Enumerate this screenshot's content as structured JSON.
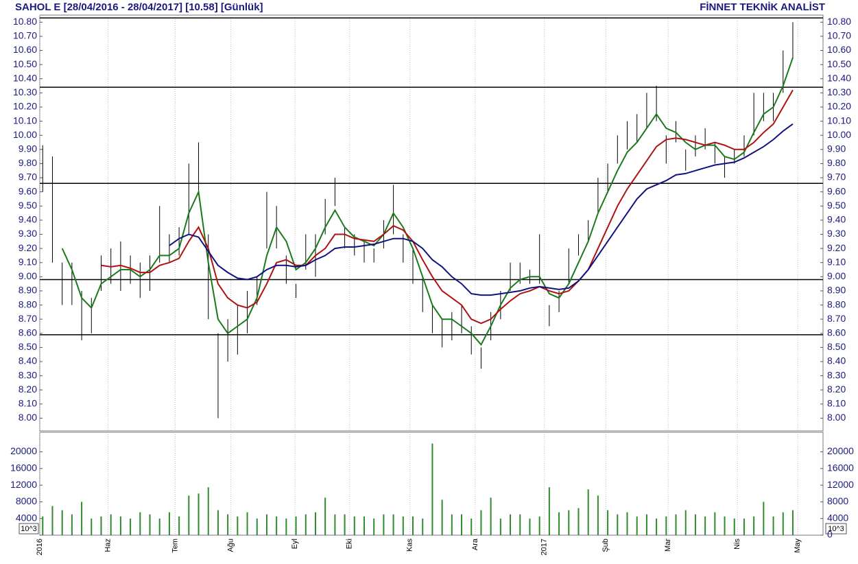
{
  "chart_data": {
    "type": "ohlc",
    "title": "SAHOL E  [28/04/2016 - 28/04/2017]  [10.58]  [Günlük]",
    "source": "FİNNET TEKNİK ANALİST",
    "xlim": [
      -0.3,
      80.1
    ],
    "xticks": [
      {
        "value": -0.3,
        "label": "2016"
      },
      {
        "value": 6.7,
        "label": "Haz"
      },
      {
        "value": 13.6,
        "label": "Tem"
      },
      {
        "value": 19.3,
        "label": "Ağu"
      },
      {
        "value": 25.9,
        "label": "Eyl"
      },
      {
        "value": 31.5,
        "label": "Eki"
      },
      {
        "value": 37.7,
        "label": "Kas"
      },
      {
        "value": 44.4,
        "label": "Ara"
      },
      {
        "value": 51.5,
        "label": "2017"
      },
      {
        "value": 57.8,
        "label": "Şub"
      },
      {
        "value": 64.2,
        "label": "Mar"
      },
      {
        "value": 71.3,
        "label": "Nis"
      },
      {
        "value": 77.5,
        "label": "May"
      }
    ],
    "ylim": [
      7.91,
      10.85
    ],
    "yticks": [
      {
        "value": 8.0,
        "label": "8.00"
      },
      {
        "value": 8.1,
        "label": "8.10"
      },
      {
        "value": 8.2,
        "label": "8.20"
      },
      {
        "value": 8.3,
        "label": "8.30"
      },
      {
        "value": 8.4,
        "label": "8.40"
      },
      {
        "value": 8.5,
        "label": "8.50"
      },
      {
        "value": 8.6,
        "label": "8.60"
      },
      {
        "value": 8.7,
        "label": "8.70"
      },
      {
        "value": 8.8,
        "label": "8.80"
      },
      {
        "value": 8.9,
        "label": "8.90"
      },
      {
        "value": 9.0,
        "label": "9.00"
      },
      {
        "value": 9.1,
        "label": "9.10"
      },
      {
        "value": 9.2,
        "label": "9.20"
      },
      {
        "value": 9.3,
        "label": "9.30"
      },
      {
        "value": 9.4,
        "label": "9.40"
      },
      {
        "value": 9.5,
        "label": "9.50"
      },
      {
        "value": 9.6,
        "label": "9.60"
      },
      {
        "value": 9.7,
        "label": "9.70"
      },
      {
        "value": 9.8,
        "label": "9.80"
      },
      {
        "value": 9.9,
        "label": "9.90"
      },
      {
        "value": 10.0,
        "label": "10.00"
      },
      {
        "value": 10.1,
        "label": "10.10"
      },
      {
        "value": 10.2,
        "label": "10.20"
      },
      {
        "value": 10.3,
        "label": "10.30"
      },
      {
        "value": 10.4,
        "label": "10.40"
      },
      {
        "value": 10.5,
        "label": "10.50"
      },
      {
        "value": 10.6,
        "label": "10.60"
      },
      {
        "value": 10.7,
        "label": "10.70"
      },
      {
        "value": 10.8,
        "label": "10.80"
      }
    ],
    "levels": [
      10.83,
      10.34,
      9.66,
      8.98,
      8.59
    ],
    "bars": {
      "color": "#000000",
      "high": [
        9.93,
        9.85,
        9.1,
        9.1,
        8.9,
        8.85,
        9.15,
        9.2,
        9.25,
        9.15,
        9.1,
        9.15,
        9.5,
        9.3,
        9.35,
        9.8,
        9.95,
        9.3,
        8.6,
        8.7,
        8.8,
        8.9,
        9.0,
        9.6,
        9.5,
        9.15,
        8.95,
        9.3,
        9.3,
        9.55,
        9.7,
        9.35,
        9.3,
        9.25,
        9.2,
        9.4,
        9.65,
        9.3,
        9.2,
        9.0,
        8.8,
        8.7,
        8.75,
        8.8,
        8.65,
        8.5,
        8.75,
        8.9,
        9.1,
        9.1,
        9.05,
        9.3,
        8.8,
        8.9,
        9.2,
        9.3,
        9.4,
        9.7,
        9.8,
        10.0,
        10.1,
        10.15,
        10.3,
        10.35,
        10.0,
        10.1,
        9.9,
        10.0,
        10.05,
        9.95,
        9.85,
        9.9,
        10.0,
        10.3,
        10.3,
        10.3,
        10.6,
        10.8
      ],
      "low": [
        9.6,
        9.1,
        8.8,
        8.8,
        8.55,
        8.6,
        8.9,
        8.95,
        8.9,
        8.95,
        8.85,
        8.9,
        9.1,
        9.1,
        9.15,
        9.3,
        9.6,
        8.7,
        8.0,
        8.4,
        8.45,
        8.6,
        8.8,
        9.2,
        9.2,
        8.95,
        8.85,
        9.05,
        9.0,
        9.3,
        9.5,
        9.2,
        9.15,
        9.1,
        9.1,
        9.2,
        9.3,
        9.1,
        8.95,
        8.75,
        8.6,
        8.5,
        8.55,
        8.6,
        8.45,
        8.35,
        8.55,
        8.7,
        8.9,
        8.95,
        8.95,
        8.95,
        8.65,
        8.75,
        8.95,
        9.15,
        9.25,
        9.45,
        9.6,
        9.8,
        9.9,
        9.95,
        10.05,
        10.1,
        9.8,
        9.95,
        9.75,
        9.85,
        9.9,
        9.8,
        9.7,
        9.8,
        9.85,
        10.0,
        10.1,
        10.1,
        10.3,
        10.55
      ]
    },
    "series": [
      {
        "color": "#1a7a1a",
        "values": [
          null,
          null,
          9.2,
          9.05,
          8.85,
          8.78,
          8.95,
          9.0,
          9.05,
          9.05,
          9.0,
          9.05,
          9.15,
          9.15,
          9.2,
          9.45,
          9.6,
          9.1,
          8.7,
          8.6,
          8.65,
          8.7,
          8.85,
          9.15,
          9.35,
          9.25,
          9.05,
          9.1,
          9.2,
          9.35,
          9.47,
          9.35,
          9.28,
          9.25,
          9.22,
          9.3,
          9.45,
          9.35,
          9.2,
          9.0,
          8.8,
          8.7,
          8.7,
          8.65,
          8.6,
          8.52,
          8.65,
          8.8,
          8.92,
          8.98,
          9.0,
          9.0,
          8.88,
          8.85,
          8.95,
          9.1,
          9.25,
          9.45,
          9.6,
          9.75,
          9.88,
          9.95,
          10.05,
          10.15,
          10.05,
          10.02,
          9.95,
          9.9,
          9.93,
          9.93,
          9.85,
          9.83,
          9.88,
          10.02,
          10.15,
          10.2,
          10.35,
          10.55
        ]
      },
      {
        "color": "#b01010",
        "values": [
          null,
          null,
          null,
          null,
          null,
          null,
          9.08,
          9.07,
          9.08,
          9.06,
          9.03,
          9.03,
          9.08,
          9.1,
          9.13,
          9.25,
          9.35,
          9.2,
          8.95,
          8.85,
          8.8,
          8.78,
          8.82,
          8.95,
          9.1,
          9.12,
          9.08,
          9.08,
          9.15,
          9.2,
          9.3,
          9.3,
          9.27,
          9.26,
          9.25,
          9.3,
          9.36,
          9.33,
          9.25,
          9.12,
          9.0,
          8.9,
          8.85,
          8.8,
          8.7,
          8.67,
          8.7,
          8.77,
          8.83,
          8.88,
          8.9,
          8.93,
          8.9,
          8.88,
          8.9,
          8.97,
          9.05,
          9.2,
          9.35,
          9.5,
          9.62,
          9.72,
          9.82,
          9.92,
          9.97,
          9.98,
          9.97,
          9.95,
          9.93,
          9.95,
          9.93,
          9.9,
          9.9,
          9.95,
          10.02,
          10.08,
          10.2,
          10.32
        ]
      },
      {
        "color": "#101080",
        "values": [
          null,
          null,
          null,
          null,
          null,
          null,
          null,
          null,
          null,
          null,
          null,
          null,
          null,
          9.22,
          9.27,
          9.3,
          9.28,
          9.18,
          9.08,
          9.03,
          8.99,
          8.98,
          9.0,
          9.05,
          9.08,
          9.08,
          9.07,
          9.08,
          9.12,
          9.15,
          9.2,
          9.21,
          9.21,
          9.22,
          9.23,
          9.25,
          9.27,
          9.27,
          9.25,
          9.2,
          9.12,
          9.07,
          9.0,
          8.95,
          8.88,
          8.87,
          8.87,
          8.88,
          8.89,
          8.9,
          8.92,
          8.93,
          8.92,
          8.91,
          8.92,
          8.97,
          9.05,
          9.15,
          9.25,
          9.35,
          9.45,
          9.55,
          9.62,
          9.65,
          9.68,
          9.72,
          9.73,
          9.75,
          9.77,
          9.79,
          9.8,
          9.81,
          9.84,
          9.88,
          9.92,
          9.97,
          10.03,
          10.08
        ]
      }
    ],
    "volume": {
      "color": "#2e8b2e",
      "unit": "10^3",
      "ylim": [
        0,
        24700
      ],
      "yticks": [
        0,
        4000,
        8000,
        12000,
        16000,
        20000
      ],
      "values": [
        4500,
        7000,
        6000,
        5000,
        8000,
        4000,
        4500,
        5000,
        4500,
        4000,
        5500,
        5000,
        4000,
        5500,
        4500,
        9500,
        10000,
        11500,
        6000,
        5000,
        4500,
        5500,
        4000,
        5000,
        4500,
        4000,
        4500,
        5000,
        5500,
        9000,
        5000,
        5000,
        4500,
        4500,
        4000,
        5000,
        5000,
        4500,
        4500,
        4000,
        22000,
        8500,
        5000,
        5000,
        4000,
        6000,
        9000,
        4000,
        5000,
        5000,
        4000,
        4500,
        11500,
        5500,
        6000,
        6500,
        11000,
        9500,
        6000,
        5000,
        5500,
        4500,
        5000,
        4000,
        4500,
        5000,
        6000,
        5000,
        4500,
        5500,
        4500,
        4000,
        4000,
        4500,
        8000,
        4500,
        5500,
        6000
      ]
    }
  }
}
